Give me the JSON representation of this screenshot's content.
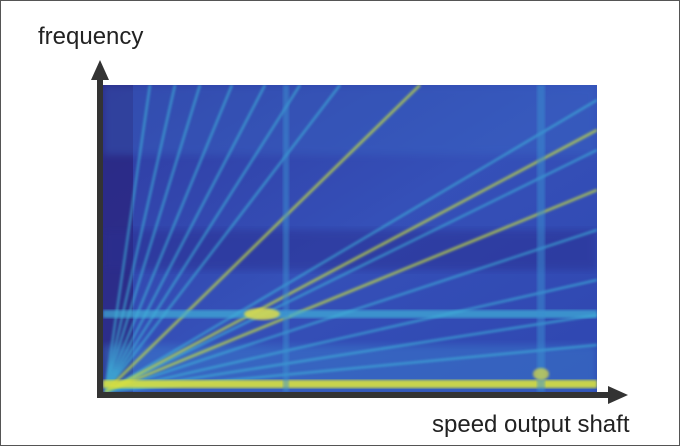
{
  "figure": {
    "y_axis_label": "frequency",
    "x_axis_label": "speed output shaft"
  }
}
